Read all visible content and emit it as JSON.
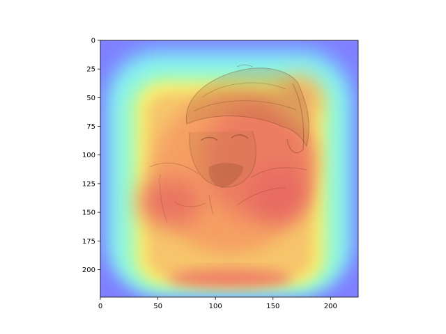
{
  "chart_data": {
    "type": "heatmap",
    "title": "",
    "xlabel": "",
    "ylabel": "",
    "image_size": [
      224,
      224
    ],
    "xlim": [
      0,
      224
    ],
    "ylim": [
      224,
      0
    ],
    "x_ticks": [
      0,
      50,
      100,
      150,
      200
    ],
    "y_ticks": [
      0,
      25,
      50,
      75,
      100,
      125,
      150,
      175,
      200
    ],
    "x_tick_labels": [
      "0",
      "50",
      "100",
      "150",
      "200"
    ],
    "y_tick_labels": [
      "0",
      "25",
      "50",
      "75",
      "100",
      "125",
      "150",
      "175",
      "200"
    ],
    "colormap": "jet",
    "colorbar": false,
    "grid": false,
    "underlay": "sepia engraving portrait of a bearded man wearing a turban",
    "colors": {
      "low": "#7f7fff",
      "mid_low": "#80ffe0",
      "mid": "#f5f070",
      "mid_high": "#f7a060",
      "high": "#e86060",
      "sketch": "#6b3a1f"
    }
  }
}
